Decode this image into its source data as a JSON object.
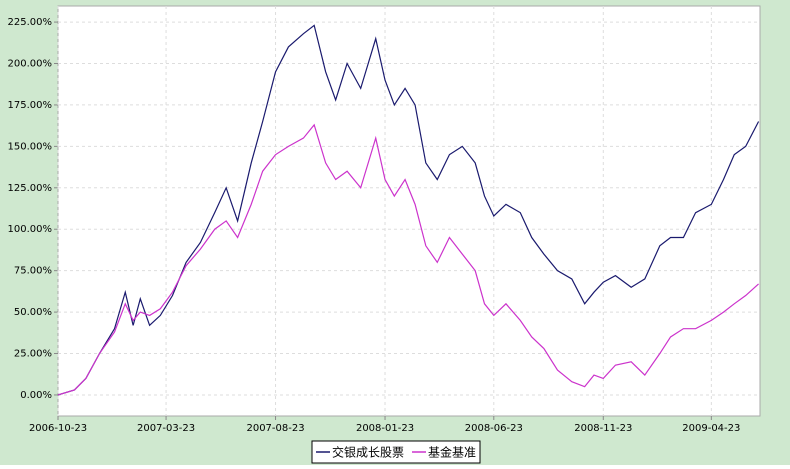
{
  "chart_data": {
    "type": "line",
    "x": [
      "2006-10-23",
      "2006-11-15",
      "2006-12-01",
      "2006-12-20",
      "2007-01-10",
      "2007-01-25",
      "2007-02-05",
      "2007-02-15",
      "2007-02-28",
      "2007-03-15",
      "2007-04-01",
      "2007-04-20",
      "2007-05-10",
      "2007-05-30",
      "2007-06-15",
      "2007-07-01",
      "2007-07-20",
      "2007-08-05",
      "2007-08-23",
      "2007-09-10",
      "2007-10-01",
      "2007-10-16",
      "2007-11-01",
      "2007-11-15",
      "2007-12-01",
      "2007-12-20",
      "2008-01-10",
      "2008-01-23",
      "2008-02-05",
      "2008-02-20",
      "2008-03-05",
      "2008-03-20",
      "2008-04-05",
      "2008-04-22",
      "2008-05-10",
      "2008-05-28",
      "2008-06-10",
      "2008-06-23",
      "2008-07-10",
      "2008-07-30",
      "2008-08-15",
      "2008-09-01",
      "2008-09-20",
      "2008-10-10",
      "2008-10-28",
      "2008-11-10",
      "2008-11-23",
      "2008-12-10",
      "2009-01-01",
      "2009-01-20",
      "2009-02-10",
      "2009-02-25",
      "2009-03-15",
      "2009-04-01",
      "2009-04-23",
      "2009-05-10",
      "2009-05-25",
      "2009-06-10",
      "2009-06-28"
    ],
    "series": [
      {
        "name": "交银成长股票",
        "color": "#1a1a6e",
        "values": [
          0,
          3,
          10,
          25,
          40,
          62,
          42,
          58,
          42,
          48,
          60,
          80,
          92,
          110,
          125,
          105,
          140,
          165,
          195,
          210,
          218,
          223,
          195,
          178,
          200,
          185,
          215,
          190,
          175,
          185,
          175,
          140,
          130,
          145,
          150,
          140,
          120,
          108,
          115,
          110,
          95,
          85,
          75,
          70,
          55,
          62,
          68,
          72,
          65,
          70,
          90,
          95,
          95,
          110,
          115,
          130,
          145,
          150,
          165
        ]
      },
      {
        "name": "基金基准",
        "color": "#cc33cc",
        "values": [
          0,
          3,
          10,
          25,
          38,
          55,
          45,
          50,
          48,
          52,
          62,
          78,
          88,
          100,
          105,
          95,
          115,
          135,
          145,
          150,
          155,
          163,
          140,
          130,
          135,
          125,
          155,
          130,
          120,
          130,
          115,
          90,
          80,
          95,
          85,
          75,
          55,
          48,
          55,
          45,
          35,
          28,
          15,
          8,
          5,
          12,
          10,
          18,
          20,
          12,
          25,
          35,
          40,
          40,
          45,
          50,
          55,
          60,
          67
        ]
      }
    ],
    "xlim": [
      "2006-10-23",
      "2009-06-30"
    ],
    "xticks": [
      "2006-10-23",
      "2007-03-23",
      "2007-08-23",
      "2008-01-23",
      "2008-06-23",
      "2008-11-23",
      "2009-04-23"
    ],
    "ylim": [
      -12.7,
      234.7
    ],
    "yticks": [
      {
        "value": 0,
        "label": "0.00%"
      },
      {
        "value": 25,
        "label": "25.00%"
      },
      {
        "value": 50,
        "label": "50.00%"
      },
      {
        "value": 75,
        "label": "75.00%"
      },
      {
        "value": 100,
        "label": "100.00%"
      },
      {
        "value": 125,
        "label": "125.00%"
      },
      {
        "value": 150,
        "label": "150.00%"
      },
      {
        "value": 175,
        "label": "175.00%"
      },
      {
        "value": 200,
        "label": "200.00%"
      },
      {
        "value": 225,
        "label": "225.00%"
      }
    ],
    "grid": true
  }
}
